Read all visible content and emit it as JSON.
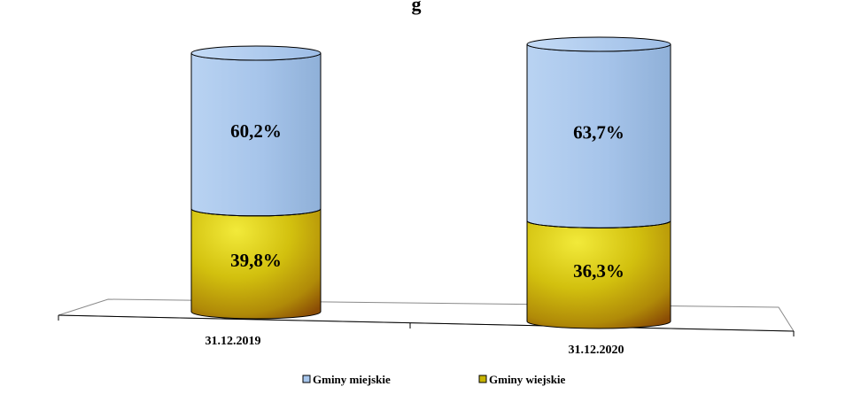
{
  "chart_data": {
    "type": "bar",
    "stacked": true,
    "percent_stacked": true,
    "shape": "cylinder",
    "title": "",
    "categories": [
      "31.12.2019",
      "31.12.2020"
    ],
    "series": [
      {
        "name": "Gminy wiejskie",
        "values": [
          39.8,
          36.3
        ],
        "labels": [
          "39,8%",
          "36,3%"
        ],
        "color": "#c7b400"
      },
      {
        "name": "Gminy miejskie",
        "values": [
          60.2,
          63.7
        ],
        "labels": [
          "60,2%",
          "63,7%"
        ],
        "color": "#a7c6ec"
      }
    ],
    "ylim": [
      0,
      100
    ],
    "grid": false,
    "legend": "bottom"
  },
  "legend": {
    "miejskie": "Gminy miejskie",
    "wiejskie": "Gminy wiejskie"
  }
}
